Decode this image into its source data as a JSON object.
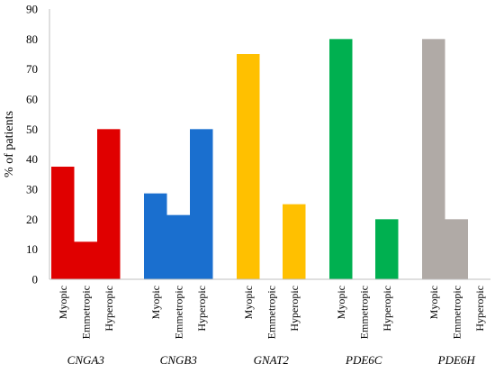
{
  "chart_data": {
    "type": "bar",
    "title": "",
    "xlabel": "",
    "ylabel": "% of patients",
    "ylim": [
      0,
      90
    ],
    "yticks": [
      0,
      10,
      20,
      30,
      40,
      50,
      60,
      70,
      80,
      90
    ],
    "grid": false,
    "legend": "none",
    "categories": [
      "Myopic",
      "Emmetropic",
      "Hyperopic"
    ],
    "groups": [
      {
        "name": "CNGA3",
        "color": "#e00000",
        "values": [
          37.5,
          12.5,
          50
        ]
      },
      {
        "name": "CNGB3",
        "color": "#1a6fcf",
        "values": [
          28.6,
          21.4,
          50
        ]
      },
      {
        "name": "GNAT2",
        "color": "#ffc000",
        "values": [
          75,
          0,
          25
        ]
      },
      {
        "name": "PDE6C",
        "color": "#00b050",
        "values": [
          80,
          0,
          20
        ]
      },
      {
        "name": "PDE6H",
        "color": "#b0aaa6",
        "values": [
          80,
          20,
          0
        ]
      }
    ]
  }
}
